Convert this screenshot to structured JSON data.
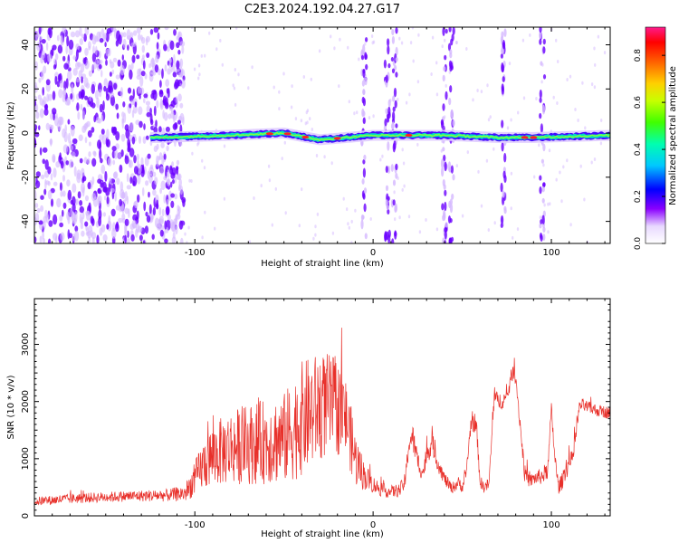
{
  "title": "C2E3.2024.192.04.27.G17",
  "colors": {
    "snr_line": "#e8302a",
    "axis": "#000000",
    "blob_low": "#d4b8ff",
    "blob_mid": "#6a00ff",
    "band_core": "#00e0c0",
    "band_hot": "#ff2020"
  },
  "chart_data": [
    {
      "type": "heatmap",
      "xlabel": "Height of straight line (km)",
      "ylabel": "Frequency (Hz)",
      "xlim": [
        -190,
        133
      ],
      "ylim": [
        -50,
        48
      ],
      "xticks": [
        -100,
        0,
        100
      ],
      "xtick_labels": [
        "-100",
        "0",
        "100"
      ],
      "yticks": [
        -40,
        -20,
        0,
        20,
        40
      ],
      "ytick_labels": [
        "-40",
        "-20",
        "0",
        "20",
        "40"
      ],
      "band_center_hz": [
        {
          "x": -120,
          "y": -2
        },
        {
          "x": -80,
          "y": -1
        },
        {
          "x": -50,
          "y": 0
        },
        {
          "x": -30,
          "y": -3
        },
        {
          "x": -15,
          "y": -2
        },
        {
          "x": 0,
          "y": -1
        },
        {
          "x": 40,
          "y": -1
        },
        {
          "x": 70,
          "y": -2
        },
        {
          "x": 90,
          "y": -2
        },
        {
          "x": 133,
          "y": -1
        }
      ],
      "vertical_streaks_km": [
        -5,
        8,
        12,
        40,
        44,
        73,
        95
      ],
      "noise_region_km": [
        -190,
        -110
      ],
      "colorbar": {
        "label": "Normalized spectral amplitude",
        "range": [
          0,
          0.92
        ],
        "ticks": [
          0.0,
          0.2,
          0.4,
          0.6,
          0.8
        ],
        "tick_labels": [
          "0.0",
          "0.2",
          "0.4",
          "0.6",
          "0.8"
        ]
      }
    },
    {
      "type": "line",
      "xlabel": "Height of straight line (km)",
      "ylabel": "SNR (10 * v/v)",
      "xlim": [
        -190,
        133
      ],
      "ylim": [
        0,
        3800
      ],
      "xticks": [
        -100,
        0,
        100
      ],
      "xtick_labels": [
        "-100",
        "0",
        "100"
      ],
      "yticks": [
        0,
        1000,
        2000,
        3000
      ],
      "ytick_labels": [
        "0",
        "1000",
        "2000",
        "3000"
      ],
      "series": [
        {
          "name": "SNR",
          "x": [
            -190,
            -170,
            -150,
            -130,
            -115,
            -105,
            -100,
            -95,
            -90,
            -80,
            -70,
            -60,
            -50,
            -45,
            -40,
            -35,
            -30,
            -25,
            -20,
            -15,
            -10,
            -5,
            0,
            5,
            10,
            15,
            18,
            20,
            22,
            25,
            28,
            30,
            33,
            36,
            40,
            44,
            48,
            50,
            52,
            55,
            58,
            60,
            62,
            65,
            68,
            70,
            75,
            78,
            80,
            85,
            88,
            90,
            95,
            98,
            100,
            102,
            104,
            106,
            108,
            110,
            112,
            116,
            120,
            125,
            133
          ],
          "y": [
            250,
            300,
            330,
            350,
            360,
            400,
            650,
            900,
            1050,
            1200,
            1250,
            1300,
            1350,
            1500,
            1700,
            1800,
            1900,
            1950,
            1900,
            1700,
            1000,
            700,
            550,
            450,
            420,
            450,
            600,
            1250,
            1400,
            950,
            750,
            1050,
            1300,
            950,
            650,
            480,
            580,
            500,
            700,
            1650,
            1550,
            600,
            500,
            550,
            2100,
            2000,
            2050,
            2500,
            2450,
            750,
            600,
            650,
            700,
            800,
            1850,
            1000,
            500,
            600,
            850,
            900,
            1000,
            1950,
            1900,
            1850,
            1800
          ],
          "noise_amplitude": [
            80,
            90,
            90,
            100,
            110,
            150,
            300,
            450,
            550,
            650,
            700,
            750,
            800,
            900,
            1000,
            1000,
            950,
            900,
            850,
            700,
            500,
            250,
            150,
            120,
            110,
            120,
            150,
            200,
            250,
            200,
            150,
            200,
            200,
            150,
            120,
            100,
            110,
            100,
            120,
            150,
            150,
            120,
            100,
            110,
            150,
            150,
            150,
            150,
            150,
            150,
            120,
            120,
            150,
            150,
            150,
            150,
            120,
            150,
            200,
            200,
            150,
            120,
            110,
            110,
            110
          ]
        }
      ]
    }
  ]
}
